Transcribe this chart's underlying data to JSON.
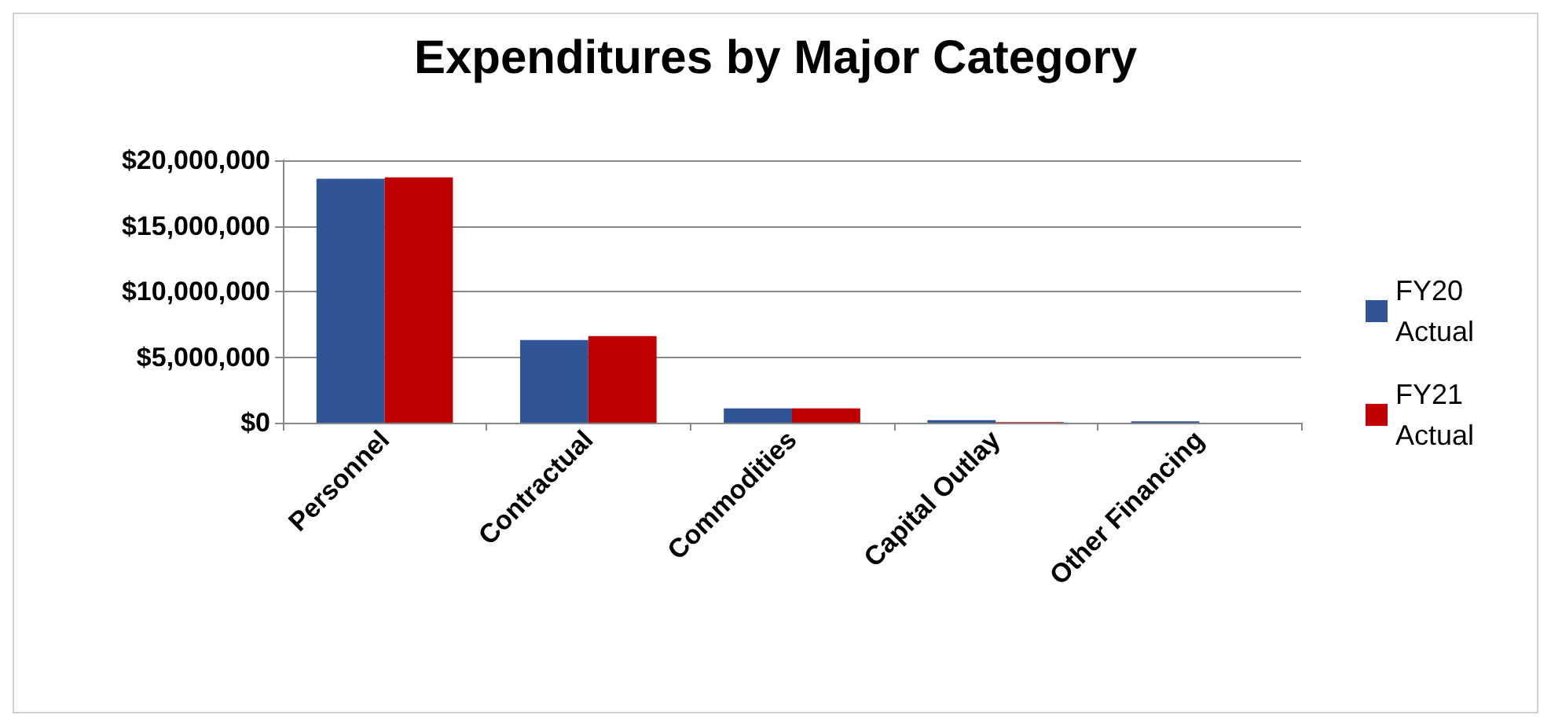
{
  "chart_data": {
    "type": "bar",
    "title": "Expenditures by Major Category",
    "categories": [
      "Personnel",
      "Contractual",
      "Commodities",
      "Capital Outlay",
      "Other Financing"
    ],
    "series": [
      {
        "name": "FY20 Actual",
        "color": "#2f5597",
        "values": [
          18600000,
          6300000,
          1100000,
          200000,
          100000
        ]
      },
      {
        "name": "FY21 Actual",
        "color": "#c00000",
        "values": [
          18700000,
          6600000,
          1100000,
          50000,
          0
        ]
      }
    ],
    "ylim": [
      0,
      20000000
    ],
    "yticks": [
      {
        "value": 0,
        "label": "$0"
      },
      {
        "value": 5000000,
        "label": "$5,000,000"
      },
      {
        "value": 10000000,
        "label": "$10,000,000"
      },
      {
        "value": 15000000,
        "label": "$15,000,000"
      },
      {
        "value": 20000000,
        "label": "$20,000,000"
      }
    ],
    "grid": "y",
    "legend": "right"
  }
}
